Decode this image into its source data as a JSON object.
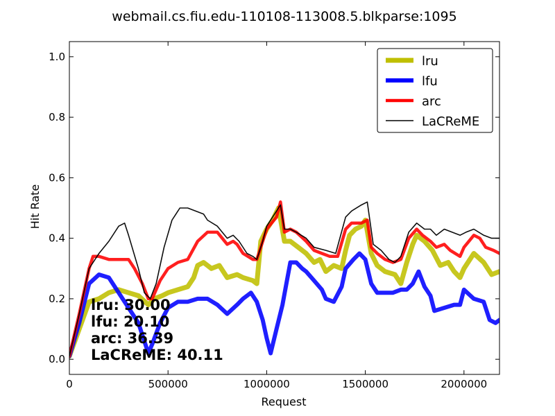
{
  "chart_data": {
    "type": "line",
    "title": "webmail.cs.fiu.edu-110108-113008.5.blkparse:1095",
    "xlabel": "Request",
    "ylabel": "Hit Rate",
    "xlim": [
      0,
      2180000
    ],
    "ylim": [
      -0.05,
      1.05
    ],
    "xticks": [
      0,
      500000,
      1000000,
      1500000,
      2000000
    ],
    "xtick_labels": [
      "0",
      "500000",
      "1000000",
      "1500000",
      "2000000"
    ],
    "yticks": [
      0.0,
      0.2,
      0.4,
      0.6,
      0.8,
      1.0
    ],
    "ytick_labels": [
      "0.0",
      "0.2",
      "0.4",
      "0.6",
      "0.8",
      "1.0"
    ],
    "grid": false,
    "legend_position": "top-right",
    "series": [
      {
        "name": "lru",
        "color": "#bfbf00",
        "points": [
          [
            0,
            0.01
          ],
          [
            50000,
            0.1
          ],
          [
            100000,
            0.19
          ],
          [
            150000,
            0.2
          ],
          [
            200000,
            0.22
          ],
          [
            250000,
            0.23
          ],
          [
            300000,
            0.22
          ],
          [
            350000,
            0.21
          ],
          [
            400000,
            0.18
          ],
          [
            430000,
            0.2
          ],
          [
            470000,
            0.21
          ],
          [
            500000,
            0.22
          ],
          [
            550000,
            0.23
          ],
          [
            600000,
            0.24
          ],
          [
            630000,
            0.27
          ],
          [
            650000,
            0.31
          ],
          [
            680000,
            0.32
          ],
          [
            720000,
            0.3
          ],
          [
            760000,
            0.31
          ],
          [
            800000,
            0.27
          ],
          [
            850000,
            0.28
          ],
          [
            880000,
            0.27
          ],
          [
            930000,
            0.26
          ],
          [
            950000,
            0.25
          ],
          [
            970000,
            0.39
          ],
          [
            1000000,
            0.43
          ],
          [
            1030000,
            0.46
          ],
          [
            1060000,
            0.5
          ],
          [
            1090000,
            0.39
          ],
          [
            1120000,
            0.39
          ],
          [
            1160000,
            0.37
          ],
          [
            1200000,
            0.35
          ],
          [
            1240000,
            0.32
          ],
          [
            1270000,
            0.33
          ],
          [
            1300000,
            0.29
          ],
          [
            1340000,
            0.31
          ],
          [
            1380000,
            0.3
          ],
          [
            1400000,
            0.36
          ],
          [
            1420000,
            0.41
          ],
          [
            1450000,
            0.43
          ],
          [
            1480000,
            0.44
          ],
          [
            1500000,
            0.46
          ],
          [
            1530000,
            0.35
          ],
          [
            1560000,
            0.31
          ],
          [
            1600000,
            0.29
          ],
          [
            1650000,
            0.28
          ],
          [
            1680000,
            0.25
          ],
          [
            1710000,
            0.32
          ],
          [
            1740000,
            0.38
          ],
          [
            1760000,
            0.41
          ],
          [
            1800000,
            0.39
          ],
          [
            1840000,
            0.36
          ],
          [
            1880000,
            0.31
          ],
          [
            1920000,
            0.32
          ],
          [
            1950000,
            0.29
          ],
          [
            1980000,
            0.27
          ],
          [
            2000000,
            0.3
          ],
          [
            2050000,
            0.35
          ],
          [
            2100000,
            0.32
          ],
          [
            2140000,
            0.28
          ],
          [
            2180000,
            0.29
          ]
        ]
      },
      {
        "name": "lfu",
        "color": "#0000ff",
        "points": [
          [
            0,
            0.01
          ],
          [
            50000,
            0.12
          ],
          [
            100000,
            0.25
          ],
          [
            150000,
            0.28
          ],
          [
            200000,
            0.27
          ],
          [
            250000,
            0.22
          ],
          [
            300000,
            0.17
          ],
          [
            350000,
            0.12
          ],
          [
            400000,
            0.02
          ],
          [
            420000,
            0.05
          ],
          [
            460000,
            0.12
          ],
          [
            500000,
            0.17
          ],
          [
            550000,
            0.19
          ],
          [
            600000,
            0.19
          ],
          [
            650000,
            0.2
          ],
          [
            700000,
            0.2
          ],
          [
            750000,
            0.18
          ],
          [
            800000,
            0.15
          ],
          [
            850000,
            0.18
          ],
          [
            880000,
            0.2
          ],
          [
            920000,
            0.22
          ],
          [
            950000,
            0.19
          ],
          [
            980000,
            0.13
          ],
          [
            1000000,
            0.07
          ],
          [
            1020000,
            0.02
          ],
          [
            1050000,
            0.1
          ],
          [
            1080000,
            0.18
          ],
          [
            1100000,
            0.25
          ],
          [
            1120000,
            0.32
          ],
          [
            1150000,
            0.32
          ],
          [
            1180000,
            0.3
          ],
          [
            1200000,
            0.29
          ],
          [
            1240000,
            0.26
          ],
          [
            1280000,
            0.23
          ],
          [
            1300000,
            0.2
          ],
          [
            1340000,
            0.19
          ],
          [
            1380000,
            0.24
          ],
          [
            1400000,
            0.3
          ],
          [
            1440000,
            0.33
          ],
          [
            1470000,
            0.35
          ],
          [
            1500000,
            0.33
          ],
          [
            1530000,
            0.25
          ],
          [
            1560000,
            0.22
          ],
          [
            1600000,
            0.22
          ],
          [
            1640000,
            0.22
          ],
          [
            1680000,
            0.23
          ],
          [
            1710000,
            0.23
          ],
          [
            1740000,
            0.25
          ],
          [
            1770000,
            0.29
          ],
          [
            1800000,
            0.24
          ],
          [
            1830000,
            0.21
          ],
          [
            1850000,
            0.16
          ],
          [
            1900000,
            0.17
          ],
          [
            1950000,
            0.18
          ],
          [
            1980000,
            0.18
          ],
          [
            2000000,
            0.23
          ],
          [
            2050000,
            0.2
          ],
          [
            2100000,
            0.19
          ],
          [
            2130000,
            0.13
          ],
          [
            2160000,
            0.12
          ],
          [
            2180000,
            0.13
          ]
        ]
      },
      {
        "name": "arc",
        "color": "#ff0000",
        "points": [
          [
            0,
            0.01
          ],
          [
            50000,
            0.15
          ],
          [
            100000,
            0.3
          ],
          [
            120000,
            0.34
          ],
          [
            150000,
            0.34
          ],
          [
            200000,
            0.33
          ],
          [
            250000,
            0.33
          ],
          [
            300000,
            0.33
          ],
          [
            330000,
            0.3
          ],
          [
            370000,
            0.25
          ],
          [
            400000,
            0.2
          ],
          [
            420000,
            0.2
          ],
          [
            460000,
            0.26
          ],
          [
            500000,
            0.3
          ],
          [
            550000,
            0.32
          ],
          [
            600000,
            0.33
          ],
          [
            650000,
            0.39
          ],
          [
            700000,
            0.42
          ],
          [
            750000,
            0.42
          ],
          [
            800000,
            0.38
          ],
          [
            830000,
            0.39
          ],
          [
            850000,
            0.38
          ],
          [
            880000,
            0.35
          ],
          [
            930000,
            0.33
          ],
          [
            950000,
            0.33
          ],
          [
            970000,
            0.37
          ],
          [
            1000000,
            0.43
          ],
          [
            1050000,
            0.47
          ],
          [
            1070000,
            0.52
          ],
          [
            1090000,
            0.42
          ],
          [
            1120000,
            0.43
          ],
          [
            1150000,
            0.42
          ],
          [
            1200000,
            0.39
          ],
          [
            1240000,
            0.36
          ],
          [
            1280000,
            0.35
          ],
          [
            1320000,
            0.34
          ],
          [
            1360000,
            0.34
          ],
          [
            1400000,
            0.43
          ],
          [
            1430000,
            0.45
          ],
          [
            1480000,
            0.45
          ],
          [
            1510000,
            0.46
          ],
          [
            1530000,
            0.37
          ],
          [
            1560000,
            0.35
          ],
          [
            1600000,
            0.33
          ],
          [
            1640000,
            0.32
          ],
          [
            1680000,
            0.33
          ],
          [
            1720000,
            0.4
          ],
          [
            1760000,
            0.43
          ],
          [
            1790000,
            0.41
          ],
          [
            1830000,
            0.39
          ],
          [
            1860000,
            0.37
          ],
          [
            1900000,
            0.38
          ],
          [
            1930000,
            0.36
          ],
          [
            1980000,
            0.34
          ],
          [
            2000000,
            0.37
          ],
          [
            2050000,
            0.41
          ],
          [
            2080000,
            0.4
          ],
          [
            2110000,
            0.37
          ],
          [
            2150000,
            0.36
          ],
          [
            2180000,
            0.35
          ]
        ]
      },
      {
        "name": "LaCReME",
        "color": "#000000",
        "points": [
          [
            0,
            0.01
          ],
          [
            50000,
            0.15
          ],
          [
            100000,
            0.3
          ],
          [
            150000,
            0.35
          ],
          [
            200000,
            0.39
          ],
          [
            250000,
            0.44
          ],
          [
            280000,
            0.45
          ],
          [
            300000,
            0.41
          ],
          [
            350000,
            0.3
          ],
          [
            380000,
            0.22
          ],
          [
            410000,
            0.2
          ],
          [
            440000,
            0.25
          ],
          [
            480000,
            0.37
          ],
          [
            520000,
            0.46
          ],
          [
            560000,
            0.5
          ],
          [
            600000,
            0.5
          ],
          [
            640000,
            0.49
          ],
          [
            680000,
            0.48
          ],
          [
            700000,
            0.46
          ],
          [
            750000,
            0.44
          ],
          [
            800000,
            0.4
          ],
          [
            830000,
            0.41
          ],
          [
            860000,
            0.39
          ],
          [
            900000,
            0.35
          ],
          [
            930000,
            0.34
          ],
          [
            950000,
            0.33
          ],
          [
            980000,
            0.39
          ],
          [
            1000000,
            0.44
          ],
          [
            1040000,
            0.48
          ],
          [
            1070000,
            0.51
          ],
          [
            1090000,
            0.43
          ],
          [
            1120000,
            0.43
          ],
          [
            1150000,
            0.42
          ],
          [
            1200000,
            0.4
          ],
          [
            1240000,
            0.37
          ],
          [
            1300000,
            0.36
          ],
          [
            1350000,
            0.35
          ],
          [
            1400000,
            0.47
          ],
          [
            1430000,
            0.49
          ],
          [
            1480000,
            0.51
          ],
          [
            1510000,
            0.52
          ],
          [
            1540000,
            0.38
          ],
          [
            1580000,
            0.36
          ],
          [
            1620000,
            0.33
          ],
          [
            1650000,
            0.32
          ],
          [
            1680000,
            0.34
          ],
          [
            1720000,
            0.42
          ],
          [
            1760000,
            0.45
          ],
          [
            1800000,
            0.43
          ],
          [
            1830000,
            0.43
          ],
          [
            1860000,
            0.41
          ],
          [
            1900000,
            0.43
          ],
          [
            1940000,
            0.42
          ],
          [
            1980000,
            0.41
          ],
          [
            2010000,
            0.42
          ],
          [
            2050000,
            0.43
          ],
          [
            2100000,
            0.41
          ],
          [
            2140000,
            0.4
          ],
          [
            2180000,
            0.4
          ]
        ]
      }
    ],
    "score_labels": [
      {
        "label": "lru:",
        "value": "30.00"
      },
      {
        "label": "lfu:",
        "value": "20.10"
      },
      {
        "label": "arc:",
        "value": "36.39"
      },
      {
        "label": "LaCReME:",
        "value": "40.11"
      }
    ]
  }
}
